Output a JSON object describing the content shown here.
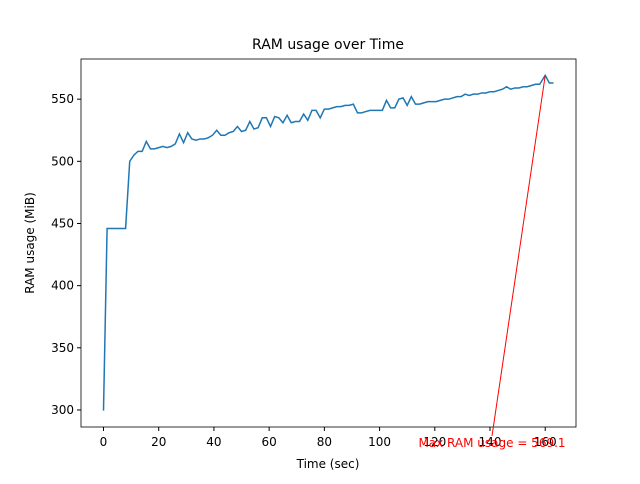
{
  "chart_data": {
    "type": "line",
    "title": "RAM usage over Time",
    "x_label": "Time (sec)",
    "y_label": "RAM usage (MiB)",
    "x": [
      0,
      1.3,
      8,
      9.5,
      11,
      12.5,
      14,
      15.5,
      17,
      18.5,
      20,
      21.5,
      23,
      24.5,
      26,
      27.5,
      29,
      30.5,
      32,
      33.5,
      35,
      36.5,
      38,
      39.5,
      41,
      42.5,
      44,
      45.5,
      47,
      48.5,
      50,
      51.5,
      53,
      54.5,
      56,
      57.5,
      59,
      60.5,
      62,
      63.5,
      65,
      66.5,
      68,
      69.5,
      71,
      72.5,
      74,
      75.5,
      77,
      78.5,
      80,
      81.5,
      83,
      84.5,
      86,
      87.5,
      89,
      90.5,
      92,
      93.5,
      95,
      96.5,
      98,
      99.5,
      101,
      102.5,
      104,
      105.5,
      107,
      108.5,
      110,
      111.5,
      113,
      114.5,
      116,
      117.5,
      119,
      120.5,
      122,
      123.5,
      125,
      126.5,
      128,
      129.5,
      131,
      132.5,
      134,
      135.5,
      137,
      138.5,
      140,
      141.5,
      143,
      144.5,
      146,
      147.5,
      149,
      150.5,
      152,
      153.5,
      155,
      156.5,
      158,
      160,
      161.5,
      163
    ],
    "series": [
      {
        "name": "RAM usage",
        "color": "#1f77b4",
        "values": [
          299.5,
          446,
          446,
          500,
          505,
          508,
          508,
          516,
          510,
          510,
          511,
          512,
          511,
          512,
          514,
          522,
          515,
          523,
          518,
          517,
          518,
          518,
          519,
          521,
          525,
          521,
          521,
          523,
          524,
          528,
          524,
          525,
          532,
          526,
          527,
          535,
          535,
          528,
          536,
          535,
          531,
          537,
          531,
          532,
          532,
          538,
          533,
          541,
          541,
          535,
          542,
          542,
          543,
          544,
          544,
          545,
          545,
          546,
          539,
          539,
          540,
          541,
          541,
          541,
          541,
          549,
          543,
          543,
          550,
          551,
          545,
          552,
          546,
          546,
          547,
          548,
          548,
          548,
          549,
          550,
          550,
          551,
          552,
          552,
          554,
          553,
          554,
          554,
          555,
          555,
          556,
          556,
          557,
          558,
          560,
          558,
          559,
          559,
          560,
          560,
          561,
          562,
          562,
          569.1,
          563,
          563
        ]
      }
    ],
    "annotation": "Max RAM usage = 569.1",
    "annotation_color": "#ff0000",
    "xlim": [
      -8.15,
      171.15
    ],
    "ylim": [
      286.3,
      582.3
    ],
    "xticks": [
      0,
      20,
      40,
      60,
      80,
      100,
      120,
      140,
      160
    ],
    "yticks": [
      300,
      350,
      400,
      450,
      500,
      550
    ]
  }
}
